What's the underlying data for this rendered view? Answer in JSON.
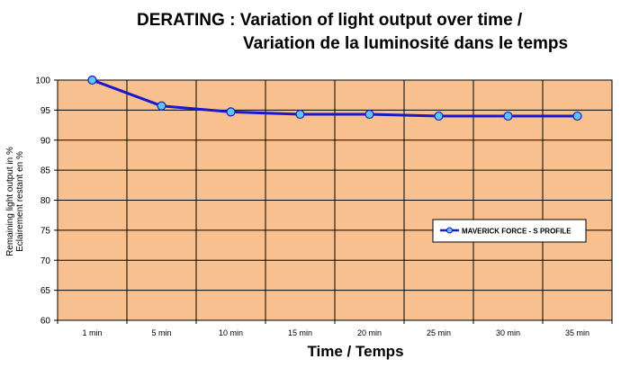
{
  "chart_data": {
    "type": "line",
    "title_line1": "DERATING : Variation of light output over time /",
    "title_line2": "Variation de la luminosité dans le temps",
    "xlabel": "Time / Temps",
    "ylabel_line1": "Remaining light output in %",
    "ylabel_line2": "Eclairement restant en %",
    "categories": [
      "1 min",
      "5 min",
      "10 min",
      "15 min",
      "20 min",
      "25 min",
      "30 min",
      "35 min"
    ],
    "series": [
      {
        "name": "MAVERICK FORCE - S PROFILE",
        "values": [
          100,
          95.7,
          94.7,
          94.3,
          94.3,
          94.0,
          94.0,
          94.0
        ]
      }
    ],
    "ylim": [
      60,
      100
    ],
    "yticks": [
      60,
      65,
      70,
      75,
      80,
      85,
      90,
      95,
      100
    ],
    "grid": true,
    "legend": "right"
  },
  "colors": {
    "plot_background": "#F9C08F",
    "grid": "#000000",
    "line": "#1818CC",
    "marker_fill": "#5FC5EE"
  }
}
